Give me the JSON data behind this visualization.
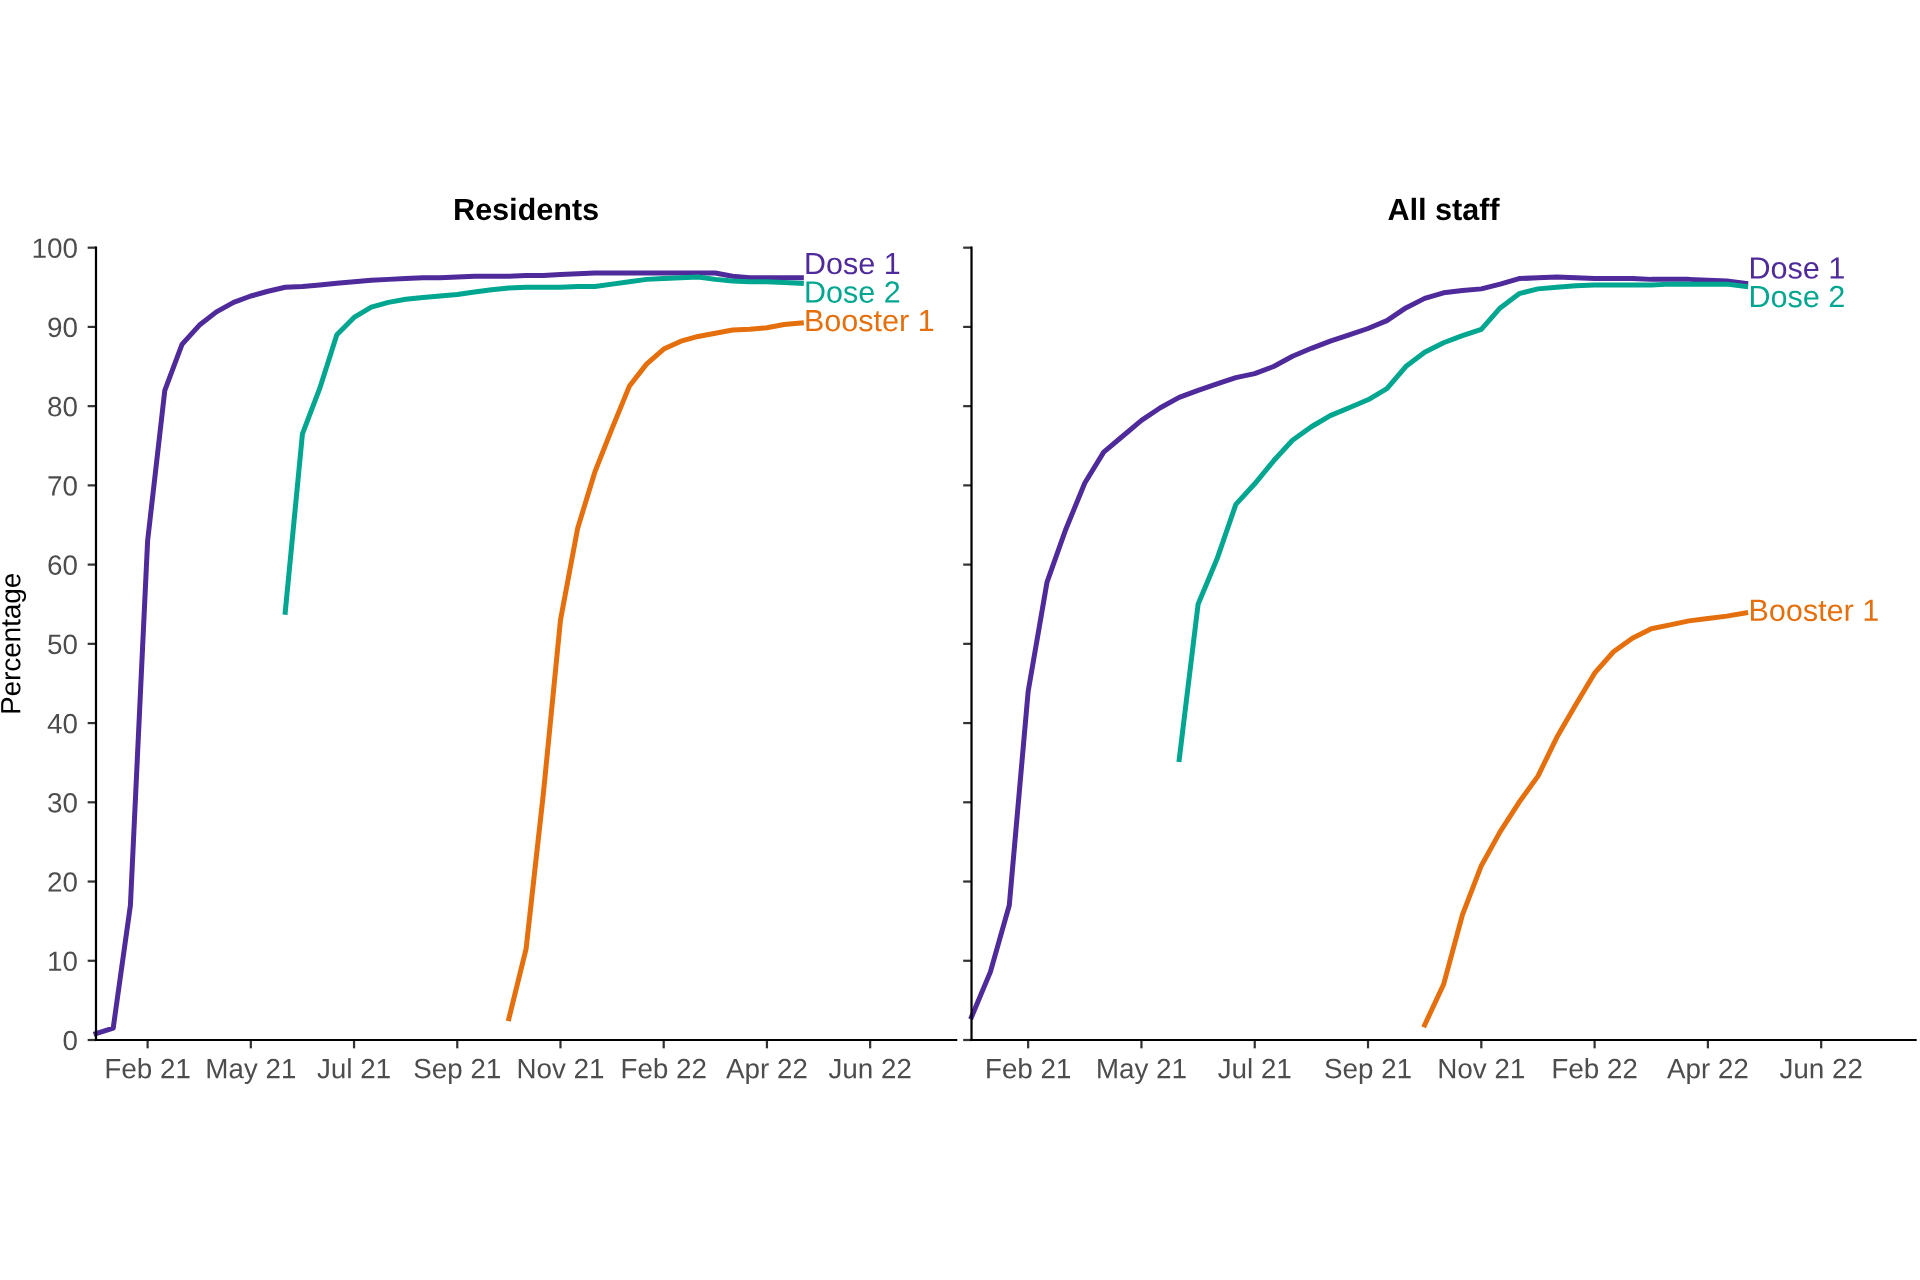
{
  "chart_data": [
    {
      "type": "line",
      "title": "Residents",
      "ylabel": "Percentage",
      "ylim": [
        0,
        100
      ],
      "categories": [
        null,
        null,
        null,
        "Feb 21",
        null,
        null,
        null,
        null,
        null,
        "May 21",
        null,
        null,
        null,
        null,
        null,
        "Jul 21",
        null,
        null,
        null,
        null,
        null,
        "Sep 21",
        null,
        null,
        null,
        null,
        null,
        "Nov 21",
        null,
        null,
        null,
        null,
        null,
        "Feb 22",
        null,
        null,
        null,
        null,
        null,
        "Apr 22",
        null,
        null,
        null,
        null,
        null,
        "Jun 22",
        null,
        null,
        null,
        null
      ],
      "yticks": [
        0,
        10,
        20,
        30,
        40,
        50,
        60,
        70,
        80,
        90,
        100
      ],
      "grid": false,
      "marker": "none",
      "line_style": "solid",
      "series": [
        {
          "name": "Dose 1",
          "color": "#4f2a9a",
          "values": [
            0.8,
            1.5,
            17,
            63,
            82,
            87.8,
            90.2,
            91.9,
            93.1,
            93.9,
            94.5,
            95.0,
            95.1,
            95.3,
            95.5,
            95.7,
            95.9,
            96.0,
            96.1,
            96.2,
            96.2,
            96.3,
            96.4,
            96.4,
            96.4,
            96.5,
            96.5,
            96.6,
            96.7,
            96.8,
            96.8,
            96.8,
            96.8,
            96.8,
            96.8,
            96.8,
            96.8,
            96.4,
            96.2,
            96.2,
            96.2,
            96.2,
            null,
            null,
            null,
            null,
            null,
            null,
            null,
            null
          ]
        },
        {
          "name": "Dose 2",
          "color": "#00a68f",
          "values": [
            null,
            null,
            null,
            null,
            null,
            null,
            null,
            null,
            null,
            null,
            null,
            54,
            76.5,
            82.2,
            89.0,
            91.2,
            92.5,
            93.1,
            93.5,
            93.7,
            93.9,
            94.1,
            94.4,
            94.7,
            94.9,
            95.0,
            95.0,
            95.0,
            95.1,
            95.1,
            95.4,
            95.7,
            96.0,
            96.1,
            96.2,
            96.3,
            96.0,
            95.8,
            95.7,
            95.7,
            95.6,
            95.5,
            null,
            null,
            null,
            null,
            null,
            null,
            null,
            null
          ]
        },
        {
          "name": "Booster 1",
          "color": "#e56f0c",
          "values": [
            null,
            null,
            null,
            null,
            null,
            null,
            null,
            null,
            null,
            null,
            null,
            null,
            null,
            null,
            null,
            null,
            null,
            null,
            null,
            null,
            null,
            null,
            null,
            null,
            2.7,
            11.5,
            31,
            53,
            64.6,
            71.7,
            77.2,
            82.5,
            85.3,
            87.2,
            88.2,
            88.8,
            89.2,
            89.6,
            89.7,
            89.9,
            90.3,
            90.5,
            null,
            null,
            null,
            null,
            null,
            null,
            null,
            null
          ]
        }
      ]
    },
    {
      "type": "line",
      "title": "All staff",
      "ylim": [
        0,
        100
      ],
      "tick_labels": "x",
      "categories": [
        null,
        null,
        null,
        "Feb 21",
        null,
        null,
        null,
        null,
        null,
        "May 21",
        null,
        null,
        null,
        null,
        null,
        "Jul 21",
        null,
        null,
        null,
        null,
        null,
        "Sep 21",
        null,
        null,
        null,
        null,
        null,
        "Nov 21",
        null,
        null,
        null,
        null,
        null,
        "Feb 22",
        null,
        null,
        null,
        null,
        null,
        "Apr 22",
        null,
        null,
        null,
        null,
        null,
        "Jun 22",
        null,
        null,
        null,
        null
      ],
      "yticks": [
        0,
        10,
        20,
        30,
        40,
        50,
        60,
        70,
        80,
        90,
        100
      ],
      "grid": false,
      "marker": "none",
      "line_style": "solid",
      "series": [
        {
          "name": "Dose 1",
          "color": "#4f2a9a",
          "values": [
            2.9,
            8.6,
            17,
            44,
            57.8,
            64.5,
            70.3,
            74.2,
            76.2,
            78.2,
            79.8,
            81.1,
            82.0,
            82.8,
            83.6,
            84.1,
            85.0,
            86.3,
            87.3,
            88.2,
            89.0,
            89.8,
            90.8,
            92.4,
            93.6,
            94.3,
            94.6,
            94.8,
            95.4,
            96.1,
            96.2,
            96.3,
            96.2,
            96.1,
            96.1,
            96.1,
            96.0,
            96.0,
            96.0,
            95.9,
            95.8,
            95.5,
            null,
            null,
            null,
            null,
            null,
            null,
            null,
            null
          ]
        },
        {
          "name": "Dose 2",
          "color": "#00a68f",
          "values": [
            null,
            null,
            null,
            null,
            null,
            null,
            null,
            null,
            null,
            null,
            null,
            35.4,
            55,
            60.7,
            67.6,
            70.2,
            73.1,
            75.7,
            77.4,
            78.8,
            79.8,
            80.8,
            82.2,
            85,
            86.8,
            88.0,
            88.9,
            89.7,
            92.4,
            94.2,
            94.8,
            95.0,
            95.2,
            95.3,
            95.3,
            95.3,
            95.3,
            95.4,
            95.4,
            95.4,
            95.4,
            95.1,
            null,
            null,
            null,
            null,
            null,
            null,
            null,
            null
          ]
        },
        {
          "name": "Booster 1",
          "color": "#e56f0c",
          "values": [
            null,
            null,
            null,
            null,
            null,
            null,
            null,
            null,
            null,
            null,
            null,
            null,
            null,
            null,
            null,
            null,
            null,
            null,
            null,
            null,
            null,
            null,
            null,
            null,
            1.9,
            7,
            15.8,
            22,
            26.3,
            30,
            33.3,
            38.2,
            42.3,
            46.3,
            49,
            50.7,
            51.9,
            52.4,
            52.9,
            53.2,
            53.5,
            53.9,
            null,
            null,
            null,
            null,
            null,
            null,
            null,
            null
          ]
        }
      ]
    }
  ]
}
